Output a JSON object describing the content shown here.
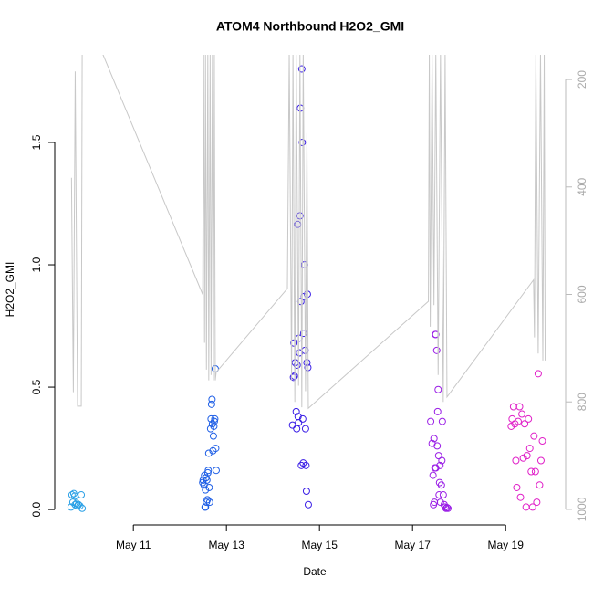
{
  "chart_data": {
    "type": "scatter",
    "title": "ATOM4 Northbound H2O2_GMI",
    "xlabel": "Date",
    "ylabel": "H2O2_GMI",
    "xlim": [
      9.31,
      20.29
    ],
    "ylim": [
      -0.063,
      1.858
    ],
    "y2lim": [
      1029,
      154
    ],
    "xticks": [
      {
        "value": 11,
        "label": "May 11"
      },
      {
        "value": 13,
        "label": "May 13"
      },
      {
        "value": 15,
        "label": "May 15"
      },
      {
        "value": 17,
        "label": "May 17"
      },
      {
        "value": 19,
        "label": "May 19"
      }
    ],
    "yticks": [
      {
        "value": 0,
        "label": "0.0"
      },
      0.5,
      {
        "value": 1,
        "label": "1.0"
      },
      1.5
    ],
    "y2ticks": [
      200,
      400,
      600,
      800,
      1000
    ],
    "series": [
      {
        "color": "#2aa0e6",
        "x": [
          9.66,
          9.68,
          9.7,
          9.72,
          9.74,
          9.75,
          9.78,
          9.8,
          9.82,
          9.85,
          9.88,
          9.9
        ],
        "values": [
          0.01,
          0.06,
          0.03,
          0.065,
          0.055,
          0.02,
          0.025,
          0.015,
          0.02,
          0.015,
          0.06,
          0.005
        ]
      },
      {
        "color": "#1f5fe6",
        "x": [
          12.49,
          12.5,
          12.52,
          12.53,
          12.54,
          12.55,
          12.55,
          12.56,
          12.57,
          12.58,
          12.59,
          12.6,
          12.61,
          12.62,
          12.63,
          12.64,
          12.66,
          12.67,
          12.68,
          12.69,
          12.7,
          12.71,
          12.72,
          12.73,
          12.74,
          12.75,
          12.76,
          12.77,
          12.78
        ],
        "values": [
          0.11,
          0.12,
          0.1,
          0.14,
          0.01,
          0.08,
          0.01,
          0.13,
          0.03,
          0.12,
          0.04,
          0.15,
          0.16,
          0.23,
          0.09,
          0.03,
          0.33,
          0.37,
          0.43,
          0.45,
          0.35,
          0.24,
          0.3,
          0.34,
          0.36,
          0.37,
          0.575,
          0.25,
          0.16
        ]
      },
      {
        "color": "#3a1ee6",
        "x": [
          14.42,
          14.44,
          14.45,
          14.46,
          14.48,
          14.5,
          14.51,
          14.52,
          14.53,
          14.54,
          14.55,
          14.56,
          14.57,
          14.58,
          14.59,
          14.6,
          14.61,
          14.62,
          14.63,
          14.64,
          14.65,
          14.66,
          14.67,
          14.68,
          14.69,
          14.7,
          14.71,
          14.72,
          14.73,
          14.74,
          14.75,
          14.76
        ],
        "values": [
          0.345,
          0.54,
          0.68,
          0.545,
          0.6,
          0.4,
          0.33,
          0.59,
          1.165,
          0.38,
          0.355,
          0.7,
          0.64,
          1.2,
          1.64,
          0.85,
          0.18,
          1.8,
          1.5,
          0.37,
          0.19,
          0.72,
          0.87,
          1.0,
          0.65,
          0.33,
          0.18,
          0.075,
          0.6,
          0.88,
          0.58,
          0.02
        ]
      },
      {
        "color": "#9a1ee6",
        "x": [
          17.39,
          17.42,
          17.44,
          17.45,
          17.46,
          17.47,
          17.48,
          17.49,
          17.5,
          17.5,
          17.52,
          17.53,
          17.54,
          17.55,
          17.56,
          17.57,
          17.58,
          17.59,
          17.6,
          17.62,
          17.63,
          17.64,
          17.66,
          17.68,
          17.7,
          17.72,
          17.74,
          17.76
        ],
        "values": [
          0.36,
          0.27,
          0.14,
          0.02,
          0.29,
          0.03,
          0.17,
          0.715,
          0.715,
          0.17,
          0.65,
          0.26,
          0.4,
          0.49,
          0.22,
          0.06,
          0.11,
          0.18,
          0.03,
          0.1,
          0.2,
          0.36,
          0.06,
          0.02,
          0.01,
          0.005,
          0.008,
          0.005
        ]
      },
      {
        "color": "#e020c8",
        "x": [
          19.12,
          19.14,
          19.17,
          19.2,
          19.22,
          19.24,
          19.27,
          19.3,
          19.32,
          19.35,
          19.38,
          19.41,
          19.44,
          19.46,
          19.49,
          19.52,
          19.55,
          19.58,
          19.61,
          19.64,
          19.67,
          19.7,
          19.73,
          19.76,
          19.79
        ],
        "values": [
          0.34,
          0.37,
          0.42,
          0.35,
          0.2,
          0.09,
          0.36,
          0.42,
          0.05,
          0.39,
          0.21,
          0.35,
          0.01,
          0.22,
          0.37,
          0.25,
          0.155,
          0.01,
          0.3,
          0.155,
          0.03,
          0.555,
          0.1,
          0.2,
          0.28
        ]
      },
      {
        "type": "line",
        "axis": "y2",
        "color": "#c8c8c8",
        "x": [
          9.67,
          9.71,
          9.75,
          9.8,
          9.88,
          9.9,
          10.33,
          12.49,
          12.51,
          12.53,
          12.55,
          12.57,
          12.6,
          12.62,
          12.65,
          12.67,
          12.7,
          12.72,
          12.74,
          12.76,
          12.78,
          14.31,
          14.35,
          14.4,
          14.43,
          14.47,
          14.5,
          14.55,
          14.58,
          14.62,
          14.65,
          14.7,
          14.73,
          14.76,
          17.34,
          17.36,
          17.38,
          17.42,
          17.46,
          17.5,
          17.55,
          17.6,
          17.66,
          17.7,
          17.74,
          19.6,
          19.62,
          19.65,
          19.7,
          19.75,
          19.8,
          19.83,
          19.85
        ],
        "values": [
          383,
          782,
          185,
          808,
          808,
          150,
          150,
          600,
          150,
          690,
          150,
          740,
          150,
          760,
          150,
          750,
          150,
          760,
          150,
          760,
          745,
          589,
          150,
          760,
          150,
          800,
          150,
          770,
          150,
          810,
          150,
          780,
          300,
          812,
          613,
          150,
          660,
          150,
          620,
          150,
          750,
          150,
          800,
          150,
          791,
          573,
          680,
          150,
          710,
          150,
          723,
          150,
          723
        ]
      }
    ]
  }
}
